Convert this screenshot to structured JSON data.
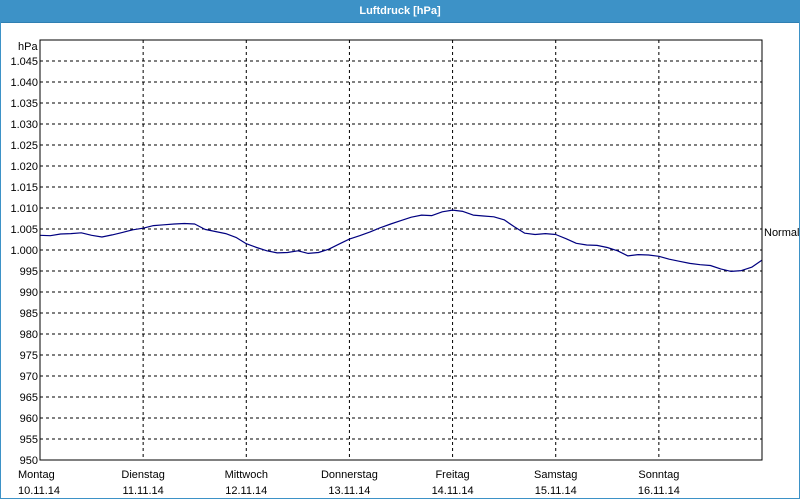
{
  "window": {
    "title": "Luftdruck [hPa]"
  },
  "chart_data": {
    "type": "line",
    "title": "Luftdruck [hPa]",
    "ylabel": "hPa",
    "ylim": [
      950,
      1050
    ],
    "y_ticks": [
      "950",
      "955",
      "960",
      "965",
      "970",
      "975",
      "980",
      "985",
      "990",
      "995",
      "1.000",
      "1.005",
      "1.010",
      "1.015",
      "1.020",
      "1.025",
      "1.030",
      "1.035",
      "1.040",
      "1.045"
    ],
    "y_tick_values": [
      950,
      955,
      960,
      965,
      970,
      975,
      980,
      985,
      990,
      995,
      1000,
      1005,
      1010,
      1015,
      1020,
      1025,
      1030,
      1035,
      1040,
      1045
    ],
    "x_ticks": [
      {
        "day": "Montag",
        "date": "10.11.14"
      },
      {
        "day": "Dienstag",
        "date": "11.11.14"
      },
      {
        "day": "Mittwoch",
        "date": "12.11.14"
      },
      {
        "day": "Donnerstag",
        "date": "13.11.14"
      },
      {
        "day": "Freitag",
        "date": "14.11.14"
      },
      {
        "day": "Samstag",
        "date": "15.11.14"
      },
      {
        "day": "Sonntag",
        "date": "16.11.14"
      }
    ],
    "xlim": [
      0,
      7
    ],
    "reference_line": {
      "label": "Normal",
      "value": 1004.5
    },
    "grid": true,
    "series": [
      {
        "color": "#000080",
        "x": [
          0,
          0.1,
          0.2,
          0.3,
          0.4,
          0.5,
          0.6,
          0.7,
          0.8,
          0.9,
          1.0,
          1.1,
          1.2,
          1.3,
          1.4,
          1.5,
          1.6,
          1.7,
          1.8,
          1.9,
          2.0,
          2.1,
          2.2,
          2.3,
          2.4,
          2.5,
          2.6,
          2.7,
          2.8,
          2.9,
          3.0,
          3.1,
          3.2,
          3.3,
          3.4,
          3.5,
          3.6,
          3.7,
          3.8,
          3.9,
          4.0,
          4.1,
          4.2,
          4.3,
          4.4,
          4.5,
          4.6,
          4.7,
          4.8,
          4.9,
          5.0,
          5.1,
          5.2,
          5.3,
          5.4,
          5.5,
          5.6,
          5.7,
          5.8,
          5.9,
          6.0,
          6.1,
          6.2,
          6.3,
          6.4,
          6.5,
          6.6,
          6.7,
          6.8,
          6.9,
          7.0
        ],
        "y": [
          1003.5,
          1003.4,
          1003.8,
          1003.9,
          1004.1,
          1003.5,
          1003.1,
          1003.6,
          1004.2,
          1004.8,
          1005.2,
          1005.8,
          1006.0,
          1006.2,
          1006.3,
          1006.2,
          1004.9,
          1004.4,
          1003.9,
          1003.0,
          1001.5,
          1000.6,
          999.8,
          999.3,
          999.4,
          999.8,
          999.2,
          999.4,
          1000.2,
          1001.4,
          1002.6,
          1003.4,
          1004.3,
          1005.3,
          1006.2,
          1007.0,
          1007.8,
          1008.3,
          1008.2,
          1009.1,
          1009.5,
          1009.2,
          1008.3,
          1008.1,
          1007.9,
          1007.2,
          1005.5,
          1004.0,
          1003.7,
          1003.9,
          1003.7,
          1002.7,
          1001.6,
          1001.2,
          1001.1,
          1000.6,
          999.8,
          998.6,
          998.9,
          998.8,
          998.5,
          997.8,
          997.3,
          996.8,
          996.5,
          996.3,
          995.5,
          994.9,
          995.1,
          995.9,
          997.6
        ]
      }
    ]
  }
}
